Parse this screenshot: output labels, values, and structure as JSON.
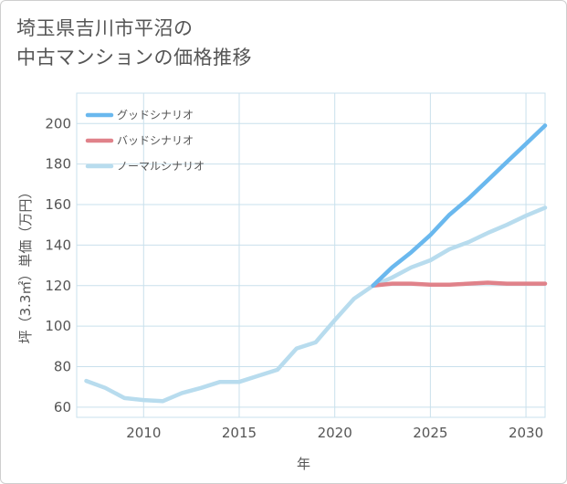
{
  "title_line1": "埼玉県吉川市平沼の",
  "title_line2": "中古マンションの価格推移",
  "chart_data": {
    "type": "line",
    "xlabel": "年",
    "ylabel": "坪（3.3㎡）単価（万円）",
    "xlim": [
      2006.5,
      2031
    ],
    "ylim": [
      55,
      215
    ],
    "xticks": [
      2010,
      2015,
      2020,
      2025,
      2030
    ],
    "yticks": [
      60,
      80,
      100,
      120,
      140,
      160,
      180,
      200
    ],
    "grid": true,
    "legend_position": "top-left",
    "series": [
      {
        "name": "グッドシナリオ",
        "color": "#6ab8ee",
        "x": [
          2022,
          2023,
          2024,
          2025,
          2026,
          2027,
          2028,
          2029,
          2030,
          2031
        ],
        "y": [
          120,
          129,
          136.5,
          145,
          155,
          163,
          172,
          181,
          190,
          199
        ]
      },
      {
        "name": "バッドシナリオ",
        "color": "#e0828a",
        "x": [
          2022,
          2023,
          2024,
          2025,
          2026,
          2027,
          2028,
          2029,
          2030,
          2031
        ],
        "y": [
          120,
          121,
          121,
          120.5,
          120.5,
          121,
          121.5,
          121,
          121,
          121
        ]
      },
      {
        "name": "ノーマルシナリオ",
        "color": "#b8dcee",
        "x": [
          2007,
          2008,
          2009,
          2010,
          2011,
          2012,
          2013,
          2014,
          2015,
          2016,
          2017,
          2018,
          2019,
          2020,
          2021,
          2022,
          2023,
          2024,
          2025,
          2026,
          2027,
          2028,
          2029,
          2030,
          2031
        ],
        "y": [
          73,
          69.5,
          64.5,
          63.5,
          63,
          67,
          69.5,
          72.5,
          72.5,
          75.5,
          78.5,
          89,
          92,
          103,
          113.5,
          120,
          124,
          129,
          132.5,
          138,
          141.5,
          146,
          150,
          154.5,
          158.5
        ]
      }
    ]
  }
}
